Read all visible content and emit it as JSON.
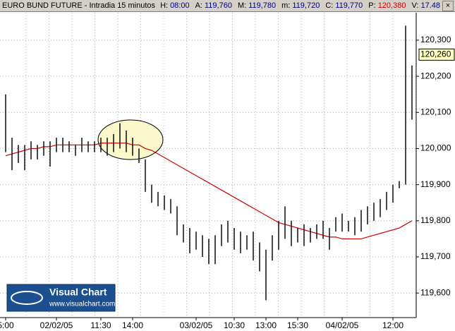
{
  "chart_data": {
    "type": "bar-range",
    "title": "EURO BUND FUTURE - Intradia 15 minutos",
    "header_fields": [
      {
        "label": "H:",
        "value": "08:00",
        "color": "#000080"
      },
      {
        "label": "A:",
        "value": "119,760",
        "color": "#000080"
      },
      {
        "label": "M:",
        "value": "119,780",
        "color": "#000080"
      },
      {
        "label": "m:",
        "value": "119,720",
        "color": "#000080"
      },
      {
        "label": "C:",
        "value": "119,770",
        "color": "#000080"
      },
      {
        "label": "P:",
        "value": "120,380",
        "color": "#cc0000"
      },
      {
        "label": "V:",
        "value": "17.48",
        "color": "#000080"
      }
    ],
    "logo": {
      "name": "Visual Chart",
      "url": "www.visualchart.com"
    },
    "categories": [
      "5:00",
      null,
      null,
      null,
      null,
      null,
      null,
      null,
      "02/02/05",
      null,
      null,
      null,
      null,
      null,
      null,
      "11:30",
      null,
      null,
      null,
      null,
      "14:00",
      null,
      null,
      null,
      null,
      null,
      null,
      null,
      null,
      null,
      "03/02/05",
      null,
      null,
      null,
      null,
      null,
      "10:30",
      null,
      null,
      null,
      null,
      "13:00",
      null,
      null,
      null,
      null,
      "15:30",
      null,
      null,
      null,
      null,
      null,
      null,
      "04/02/05",
      null,
      null,
      null,
      null,
      null,
      null,
      null,
      "12:00",
      null,
      null,
      null
    ],
    "high": [
      120.15,
      120.03,
      120.01,
      120.01,
      120.02,
      120.01,
      120.02,
      120.02,
      120.03,
      120.03,
      120.02,
      120.01,
      120.03,
      120.02,
      120.02,
      120.03,
      120.03,
      120.04,
      120.07,
      120.05,
      120.03,
      120.0,
      119.97,
      119.9,
      119.88,
      119.87,
      119.86,
      119.84,
      119.79,
      119.78,
      119.77,
      119.76,
      119.75,
      119.76,
      119.79,
      119.8,
      119.78,
      119.77,
      119.76,
      119.77,
      119.74,
      119.72,
      119.76,
      119.8,
      119.84,
      119.8,
      119.78,
      119.79,
      119.78,
      119.79,
      119.8,
      119.78,
      119.81,
      119.82,
      119.8,
      119.81,
      119.83,
      119.84,
      119.85,
      119.86,
      119.88,
      119.9,
      119.91,
      120.34,
      120.23
    ],
    "low": [
      119.99,
      119.94,
      119.96,
      119.94,
      119.97,
      119.97,
      119.98,
      119.95,
      119.99,
      119.99,
      119.99,
      119.98,
      119.99,
      119.99,
      119.99,
      119.99,
      119.98,
      119.99,
      120.0,
      119.99,
      119.98,
      119.96,
      119.88,
      119.85,
      119.84,
      119.83,
      119.82,
      119.76,
      119.74,
      119.71,
      119.72,
      119.7,
      119.68,
      119.68,
      119.73,
      119.74,
      119.72,
      119.71,
      119.72,
      119.69,
      119.66,
      119.58,
      119.69,
      119.72,
      119.75,
      119.73,
      119.74,
      119.73,
      119.74,
      119.75,
      119.75,
      119.72,
      119.77,
      119.77,
      119.77,
      119.76,
      119.77,
      119.79,
      119.8,
      119.81,
      119.83,
      119.85,
      119.89,
      119.9,
      120.08
    ],
    "ma": [
      119.98,
      119.985,
      119.99,
      119.995,
      120.0,
      120.0,
      120.005,
      120.005,
      120.01,
      120.01,
      120.01,
      120.01,
      120.01,
      120.01,
      120.01,
      120.015,
      120.015,
      120.015,
      120.015,
      120.015,
      120.01,
      120.01,
      120.0,
      119.995,
      119.985,
      119.975,
      119.965,
      119.955,
      119.945,
      119.935,
      119.925,
      119.915,
      119.905,
      119.895,
      119.885,
      119.875,
      119.865,
      119.855,
      119.845,
      119.835,
      119.825,
      119.815,
      119.805,
      119.795,
      119.79,
      119.785,
      119.78,
      119.775,
      119.77,
      119.765,
      119.76,
      119.755,
      119.755,
      119.75,
      119.75,
      119.75,
      119.75,
      119.755,
      119.76,
      119.765,
      119.77,
      119.775,
      119.78,
      119.79,
      119.8
    ],
    "bar_color": "#1a1a1a",
    "ma_color": "#d00000",
    "last_price": {
      "value": 120.26,
      "label": "120,260"
    },
    "ylim": [
      119.532,
      120.376
    ],
    "yticks": [
      {
        "value": 119.6,
        "label": "119,600"
      },
      {
        "value": 119.7,
        "label": "119,700"
      },
      {
        "value": 119.8,
        "label": "119,800"
      },
      {
        "value": 119.9,
        "label": "119,900"
      },
      {
        "value": 120.0,
        "label": "120,000"
      },
      {
        "value": 120.1,
        "label": "120,100"
      },
      {
        "value": 120.2,
        "label": "120,200"
      },
      {
        "value": 120.3,
        "label": "120,300"
      }
    ],
    "grid": true
  }
}
